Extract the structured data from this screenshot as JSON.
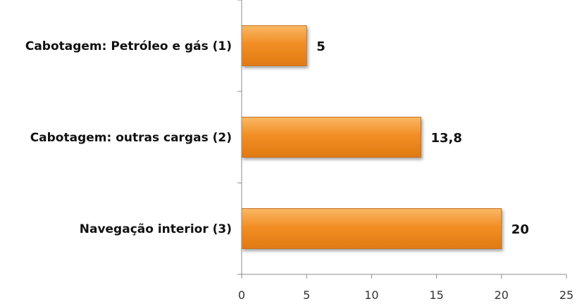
{
  "chart_data": {
    "type": "bar",
    "orientation": "horizontal",
    "categories": [
      "Cabotagem: Petróleo e gás (1)",
      "Cabotagem: outras cargas (2)",
      "Navegação interior (3)"
    ],
    "values": [
      5,
      13.8,
      20
    ],
    "value_labels": [
      "5",
      "13,8",
      "20"
    ],
    "xlim": [
      0,
      25
    ],
    "xticks": [
      0,
      5,
      10,
      15,
      20,
      25
    ],
    "grid": false,
    "legend": "none",
    "bar_color": "#f28e25"
  }
}
